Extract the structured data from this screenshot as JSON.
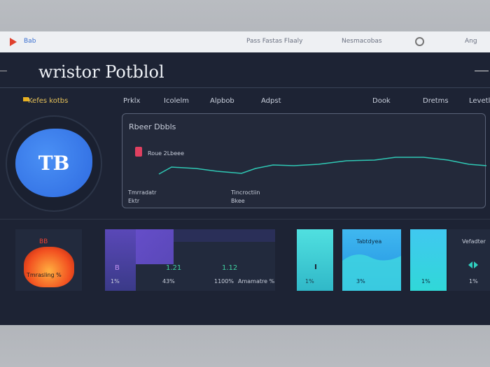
{
  "top_bar": {
    "brand": "Bab",
    "center_text": "Pass Fastas Flaaly",
    "right_text": "Nesmacobas",
    "language": "Ang"
  },
  "header": {
    "title": "wristor Potblol"
  },
  "nav": {
    "items": [
      "Kefes kotbs",
      "Prklx",
      "Icolelm",
      "Alpbob",
      "Adpst",
      "Dook",
      "Dretms",
      "Levetl"
    ]
  },
  "avatar": {
    "initials": "TB"
  },
  "chart_panel": {
    "title": "Rbeer Dbbls",
    "legend": "Roue 2Lbeee",
    "labels": [
      "Tmrradatr",
      "Ektr",
      "Tincroctiin",
      "Bkee"
    ]
  },
  "cards": {
    "heat": {
      "badge": "BB",
      "label": "Tmrasling %"
    },
    "stats": {
      "values": [
        "B",
        "1.21",
        "1.12"
      ],
      "percents": [
        "1%",
        "43%",
        "1100%"
      ],
      "note": "Amamatre %"
    },
    "tiles": [
      {
        "percent": "1%"
      },
      {
        "title": "Tabtdyea",
        "percent": "3%"
      },
      {
        "percent": "1%"
      },
      {
        "title": "Vefadter",
        "percent": "1%"
      }
    ]
  }
}
